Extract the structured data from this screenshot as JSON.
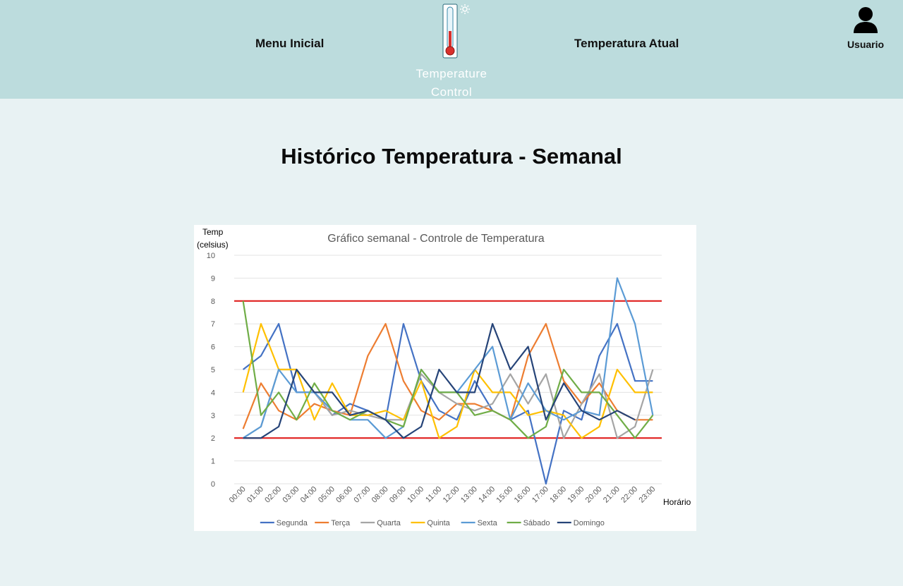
{
  "header": {
    "nav_home": "Menu Inicial",
    "nav_current": "Temperatura Atual",
    "logo_line1": "Temperature",
    "logo_line2": "Control",
    "user_label": "Usuario",
    "logo_icon": "thermometer-icon",
    "user_icon": "user-icon"
  },
  "page": {
    "title": "Histórico Temperatura - Semanal"
  },
  "chart_data": {
    "type": "line",
    "title": "Gráfico semanal - Controle de Temperatura",
    "ylabel_line1": "Temp",
    "ylabel_line2": "(celsius)",
    "xlabel": "Horário",
    "ylim": [
      0,
      10
    ],
    "yticks": [
      0,
      1,
      2,
      3,
      4,
      5,
      6,
      7,
      8,
      9,
      10
    ],
    "legend_position": "bottom",
    "grid": true,
    "x": [
      "00:00",
      "01:00",
      "02:00",
      "03:00",
      "04:00",
      "05:00",
      "06:00",
      "07:00",
      "08:00",
      "09:00",
      "10:00",
      "11:00",
      "12:00",
      "13:00",
      "14:00",
      "15:00",
      "16:00",
      "17:00",
      "18:00",
      "19:00",
      "20:00",
      "21:00",
      "22:00",
      "23:00"
    ],
    "thresholds": [
      {
        "value": 8,
        "color": "#e0201f"
      },
      {
        "value": 2,
        "color": "#e0201f"
      }
    ],
    "series": [
      {
        "name": "Segunda",
        "color": "#4472c4",
        "values": [
          5.0,
          5.6,
          7.0,
          4.0,
          4.0,
          3.0,
          3.5,
          3.2,
          2.8,
          7.0,
          4.5,
          3.2,
          2.8,
          4.5,
          3.2,
          2.8,
          3.2,
          0.0,
          3.2,
          2.8,
          5.6,
          7.0,
          4.5,
          4.5
        ]
      },
      {
        "name": "Terça",
        "color": "#ed7d31",
        "values": [
          2.4,
          4.4,
          3.2,
          2.8,
          3.5,
          3.2,
          3.0,
          5.6,
          7.0,
          4.5,
          3.2,
          2.8,
          3.5,
          3.5,
          3.2,
          2.8,
          5.6,
          7.0,
          4.5,
          3.5,
          4.4,
          3.2,
          2.8,
          2.8
        ]
      },
      {
        "name": "Quarta",
        "color": "#a5a5a5",
        "values": [
          2.0,
          2.5,
          5.0,
          5.0,
          4.0,
          3.0,
          3.2,
          3.0,
          2.8,
          2.8,
          4.8,
          4.0,
          3.5,
          3.2,
          3.5,
          4.8,
          3.5,
          4.8,
          2.0,
          3.5,
          4.8,
          2.0,
          2.5,
          5.0
        ]
      },
      {
        "name": "Quinta",
        "color": "#ffc000",
        "values": [
          4.0,
          7.0,
          5.0,
          5.0,
          2.8,
          4.4,
          3.0,
          3.0,
          3.2,
          2.8,
          4.5,
          2.0,
          2.5,
          5.0,
          4.0,
          4.0,
          3.0,
          3.2,
          3.0,
          2.0,
          2.5,
          5.0,
          4.0,
          4.0
        ]
      },
      {
        "name": "Sexta",
        "color": "#5b9bd5",
        "values": [
          2.0,
          2.5,
          5.0,
          4.0,
          4.0,
          3.2,
          2.8,
          2.8,
          2.0,
          2.5,
          5.0,
          4.0,
          4.0,
          5.0,
          6.0,
          2.8,
          4.4,
          3.2,
          2.8,
          3.2,
          3.0,
          9.0,
          7.0,
          3.0
        ]
      },
      {
        "name": "Sábado",
        "color": "#70ad47",
        "values": [
          8.0,
          3.0,
          4.0,
          2.8,
          4.4,
          3.2,
          2.8,
          3.2,
          2.8,
          2.5,
          5.0,
          4.0,
          4.0,
          3.0,
          3.2,
          2.8,
          2.0,
          2.5,
          5.0,
          4.0,
          4.0,
          3.0,
          2.0,
          3.0
        ]
      },
      {
        "name": "Domingo",
        "color": "#264478",
        "values": [
          2.0,
          2.0,
          2.5,
          5.0,
          4.0,
          4.0,
          3.0,
          3.2,
          2.8,
          2.0,
          2.5,
          5.0,
          4.0,
          4.0,
          7.0,
          5.0,
          6.0,
          2.8,
          4.4,
          3.2,
          2.8,
          3.2,
          2.8,
          null
        ]
      }
    ]
  }
}
